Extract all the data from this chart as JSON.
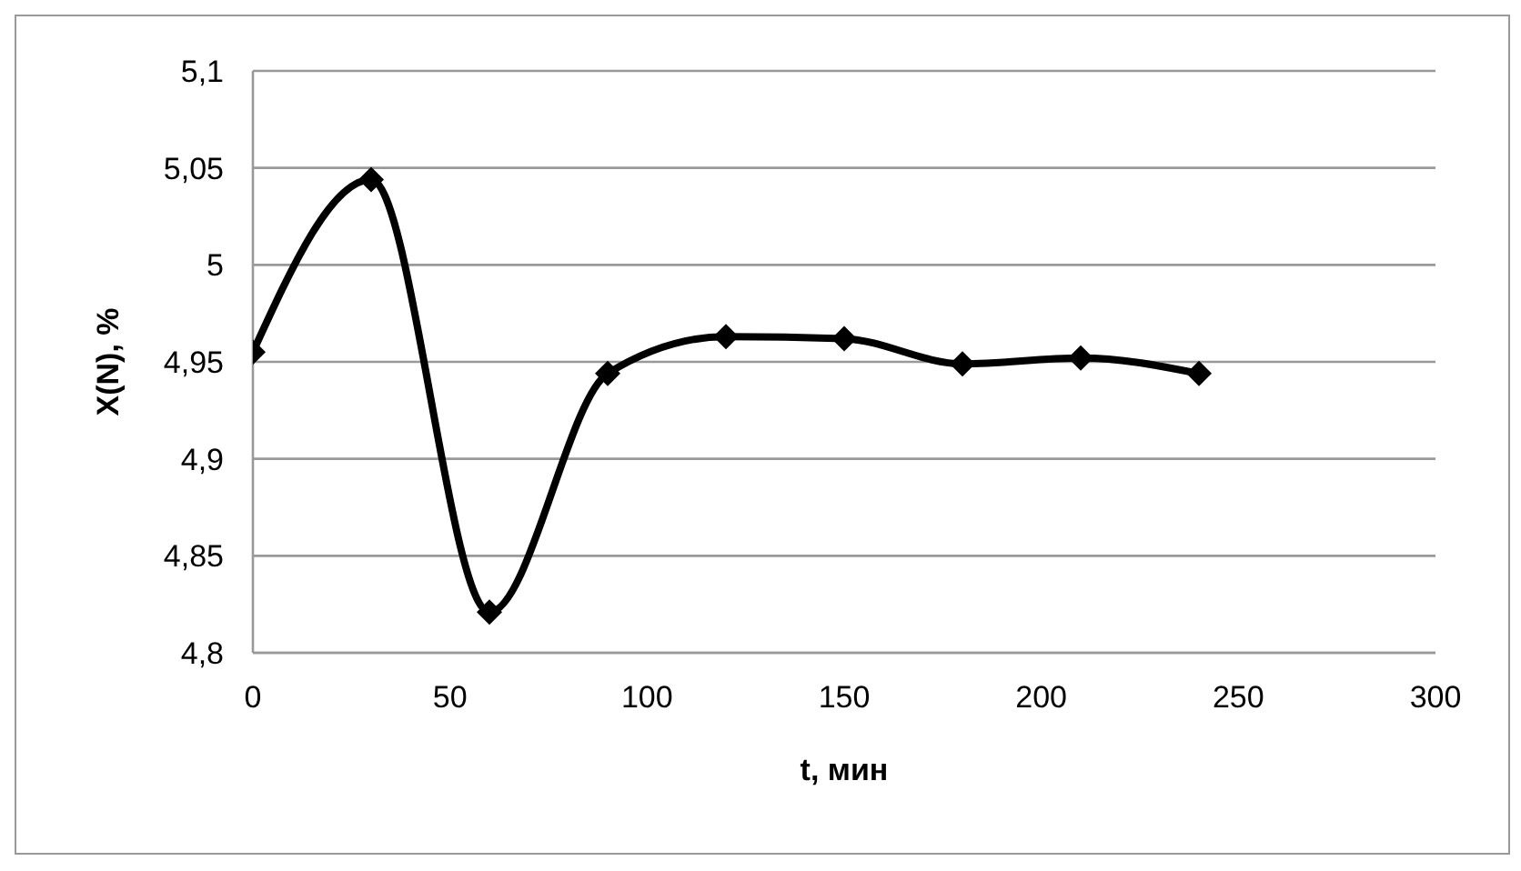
{
  "chart_data": {
    "type": "line",
    "xlabel": "t, мин",
    "ylabel": "X(N), %",
    "x": [
      0,
      30,
      60,
      90,
      120,
      150,
      180,
      210,
      240
    ],
    "series": [
      {
        "color": "#000000",
        "values": [
          4.955,
          5.044,
          4.821,
          4.944,
          4.963,
          4.962,
          4.949,
          4.952,
          4.944
        ]
      }
    ],
    "xlim": [
      0,
      300
    ],
    "xticks": [
      0,
      50,
      100,
      150,
      200,
      250,
      300
    ],
    "ylim": [
      4.8,
      5.1
    ],
    "yticks": [
      {
        "value": 4.8,
        "label": "4,8"
      },
      {
        "value": 4.85,
        "label": "4,85"
      },
      {
        "value": 4.9,
        "label": "4,9"
      },
      {
        "value": 4.95,
        "label": "4,95"
      },
      {
        "value": 5,
        "label": "5"
      },
      {
        "value": 5.05,
        "label": "5,05"
      },
      {
        "value": 5.1,
        "label": "5,1"
      }
    ],
    "grid": "y",
    "legend": false,
    "marker": "diamond",
    "line_style": "solid"
  }
}
